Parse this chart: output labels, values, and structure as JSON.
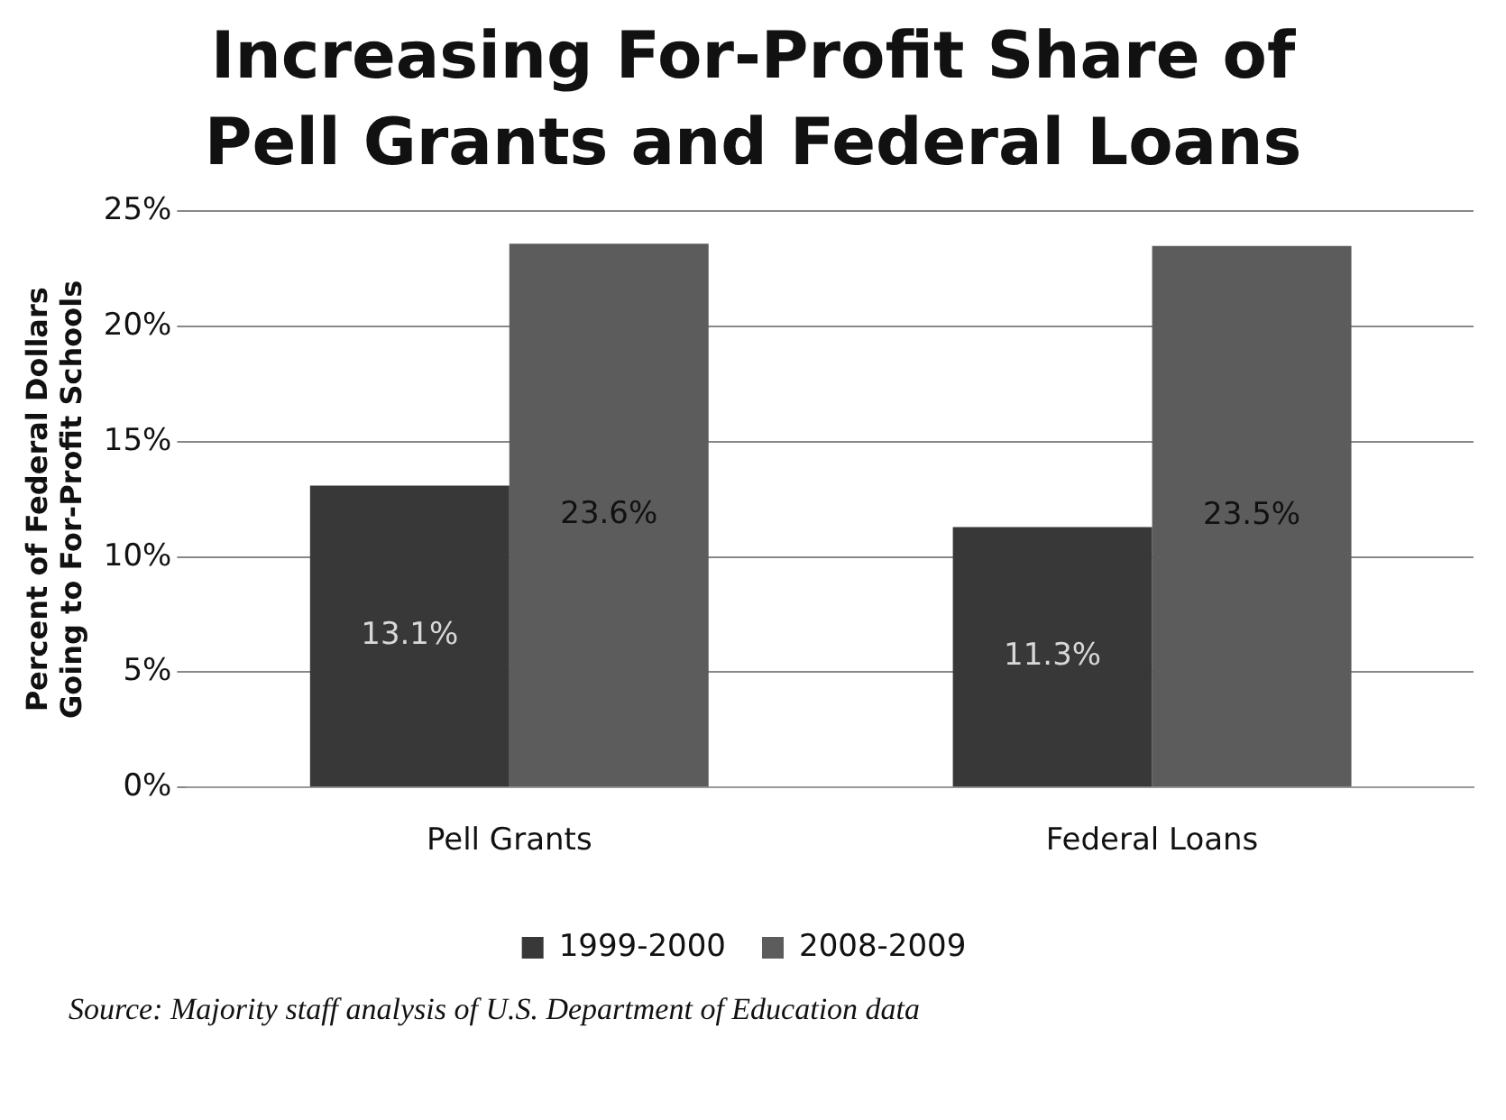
{
  "chart_data": {
    "type": "bar",
    "title": "Increasing For-Profit Share of Pell Grants and Federal Loans",
    "ylabel": "Percent of Federal Dollars Going to For-Profit Schools",
    "categories": [
      "Pell Grants",
      "Federal Loans"
    ],
    "series": [
      {
        "name": "1999-2000",
        "color": "#383838",
        "values": [
          13.1,
          11.3
        ],
        "value_labels": [
          "13.1%",
          "11.3%"
        ]
      },
      {
        "name": "2008-2009",
        "color": "#5c5c5c",
        "values": [
          23.6,
          23.5
        ],
        "value_labels": [
          "23.6%",
          "23.5%"
        ]
      }
    ],
    "ylim": [
      0,
      25
    ],
    "yticks": [
      {
        "value": 0,
        "label": "0%"
      },
      {
        "value": 5,
        "label": "5%"
      },
      {
        "value": 10,
        "label": "10%"
      },
      {
        "value": 15,
        "label": "15%"
      },
      {
        "value": 20,
        "label": "20%"
      },
      {
        "value": 25,
        "label": "25%"
      }
    ],
    "grid": "y",
    "legend": "bottom",
    "annotations": [
      "Source: Majority staff analysis of U.S. Department of Education data"
    ]
  }
}
